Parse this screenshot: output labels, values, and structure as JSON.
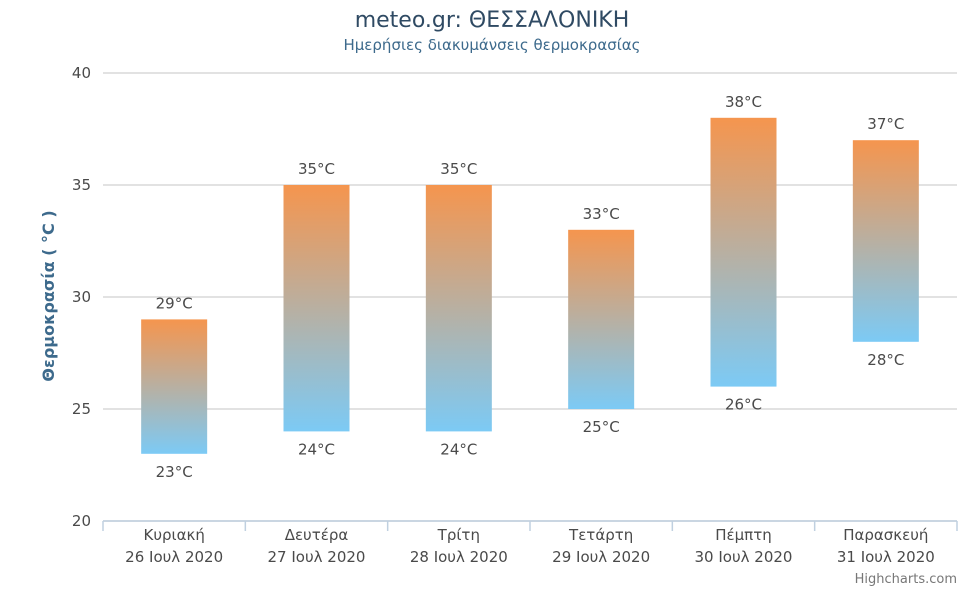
{
  "chart_data": {
    "type": "bar",
    "subtype": "columnrange",
    "title": "meteo.gr: ΘΕΣΣΑΛΟΝΙΚΗ",
    "subtitle": "Ημερήσιες διακυμάνσεις θερμοκρασίας",
    "ylabel": "Θερμοκρασία ( °C )",
    "ylim": [
      20,
      40
    ],
    "yticks": [
      20,
      25,
      30,
      35,
      40
    ],
    "grid": true,
    "categories": [
      [
        "Κυριακή",
        "26 Ιουλ 2020"
      ],
      [
        "Δευτέρα",
        "27 Ιουλ 2020"
      ],
      [
        "Τρίτη",
        "28 Ιουλ 2020"
      ],
      [
        "Τετάρτη",
        "29 Ιουλ 2020"
      ],
      [
        "Πέμπτη",
        "30 Ιουλ 2020"
      ],
      [
        "Παρασκευή",
        "31 Ιουλ 2020"
      ]
    ],
    "low": [
      23,
      24,
      24,
      25,
      26,
      28
    ],
    "high": [
      29,
      35,
      35,
      33,
      38,
      37
    ],
    "unit": "°C",
    "colors": {
      "top": "#f5954e",
      "bottom": "#7ccaf5",
      "grid": "#d8d8d8",
      "axis": "#c0d0e0"
    },
    "credits": "Highcharts.com"
  }
}
